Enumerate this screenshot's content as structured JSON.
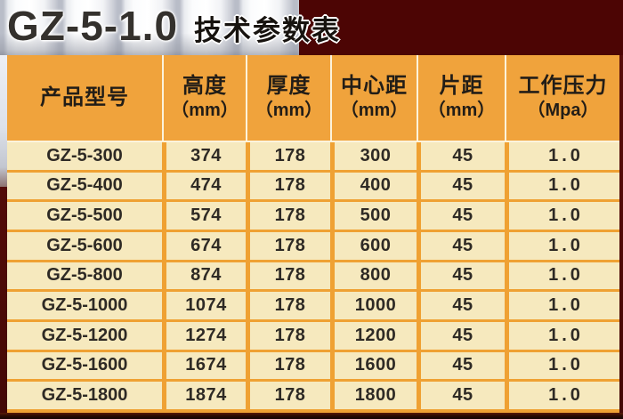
{
  "title": {
    "model": "GZ-5-1.0",
    "suffix": "技术参数表"
  },
  "colors": {
    "header_orange": "#F0A33C",
    "cell_cream": "#F6E9BE",
    "grid_orange": "#EFA133",
    "header_divider_white": "#FCF3DC",
    "maroon_block": "#4C0504",
    "page_maroon": "#4F0A07",
    "bottom_dark": "#140402",
    "text_dark": "#2E2A25"
  },
  "table": {
    "columns": [
      {
        "label": "产品型号",
        "unit": ""
      },
      {
        "label": "高度",
        "unit": "（mm）"
      },
      {
        "label": "厚度",
        "unit": "（mm）"
      },
      {
        "label": "中心距",
        "unit": "（mm）"
      },
      {
        "label": "片距",
        "unit": "（mm）"
      },
      {
        "label": "工作压力",
        "unit": "（Mpa）"
      }
    ],
    "rows": [
      [
        "GZ-5-300",
        "374",
        "178",
        "300",
        "45",
        "1.0"
      ],
      [
        "GZ-5-400",
        "474",
        "178",
        "400",
        "45",
        "1.0"
      ],
      [
        "GZ-5-500",
        "574",
        "178",
        "500",
        "45",
        "1.0"
      ],
      [
        "GZ-5-600",
        "674",
        "178",
        "600",
        "45",
        "1.0"
      ],
      [
        "GZ-5-800",
        "874",
        "178",
        "800",
        "45",
        "1.0"
      ],
      [
        "GZ-5-1000",
        "1074",
        "178",
        "1000",
        "45",
        "1.0"
      ],
      [
        "GZ-5-1200",
        "1274",
        "178",
        "1200",
        "45",
        "1.0"
      ],
      [
        "GZ-5-1600",
        "1674",
        "178",
        "1600",
        "45",
        "1.0"
      ],
      [
        "GZ-5-1800",
        "1874",
        "178",
        "1800",
        "45",
        "1.0"
      ]
    ]
  }
}
